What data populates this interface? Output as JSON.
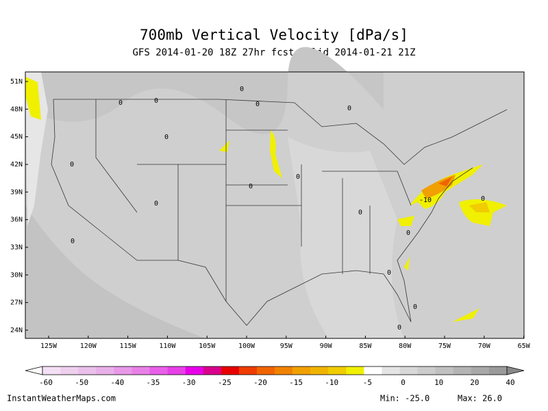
{
  "header": {
    "title": "700mb Vertical Velocity [dPa/s]",
    "subtitle": "GFS 2014-01-20 18Z 27hr fcst valid 2014-01-21 21Z"
  },
  "map": {
    "lat_labels": [
      "51N",
      "48N",
      "45N",
      "42N",
      "39N",
      "36N",
      "33N",
      "30N",
      "27N",
      "24N"
    ],
    "lon_labels": [
      "125W",
      "120W",
      "115W",
      "110W",
      "105W",
      "100W",
      "95W",
      "90W",
      "85W",
      "80W",
      "75W",
      "70W",
      "65W"
    ],
    "contour_labels": [
      "0",
      "0",
      "0",
      "0",
      "0",
      "0",
      "0",
      "0",
      "0",
      "0",
      "0",
      "0",
      "0",
      "0",
      "-10",
      "0",
      "0",
      "0"
    ]
  },
  "colorbar": {
    "labels": [
      "-60",
      "-50",
      "-40",
      "-35",
      "-30",
      "-25",
      "-20",
      "-15",
      "-10",
      "-5",
      "0",
      "10",
      "20",
      "40"
    ],
    "colors": [
      "#f4e0f4",
      "#eed0ee",
      "#eac0ea",
      "#e8b0e8",
      "#e898e8",
      "#e880e8",
      "#e860e8",
      "#e840e8",
      "#e800e8",
      "#d8008c",
      "#e80000",
      "#f03c00",
      "#f06400",
      "#f08200",
      "#f0a000",
      "#f0b400",
      "#f0cc00",
      "#f0f000",
      "#ffffff",
      "#e4e4e4",
      "#d8d8d8",
      "#cccccc",
      "#c0c0c0",
      "#b4b4b4",
      "#a8a8a8",
      "#9a9a9a"
    ]
  },
  "footer": {
    "site": "InstantWeatherMaps.com",
    "min": "Min: -25.0",
    "max": "Max: 26.0"
  }
}
